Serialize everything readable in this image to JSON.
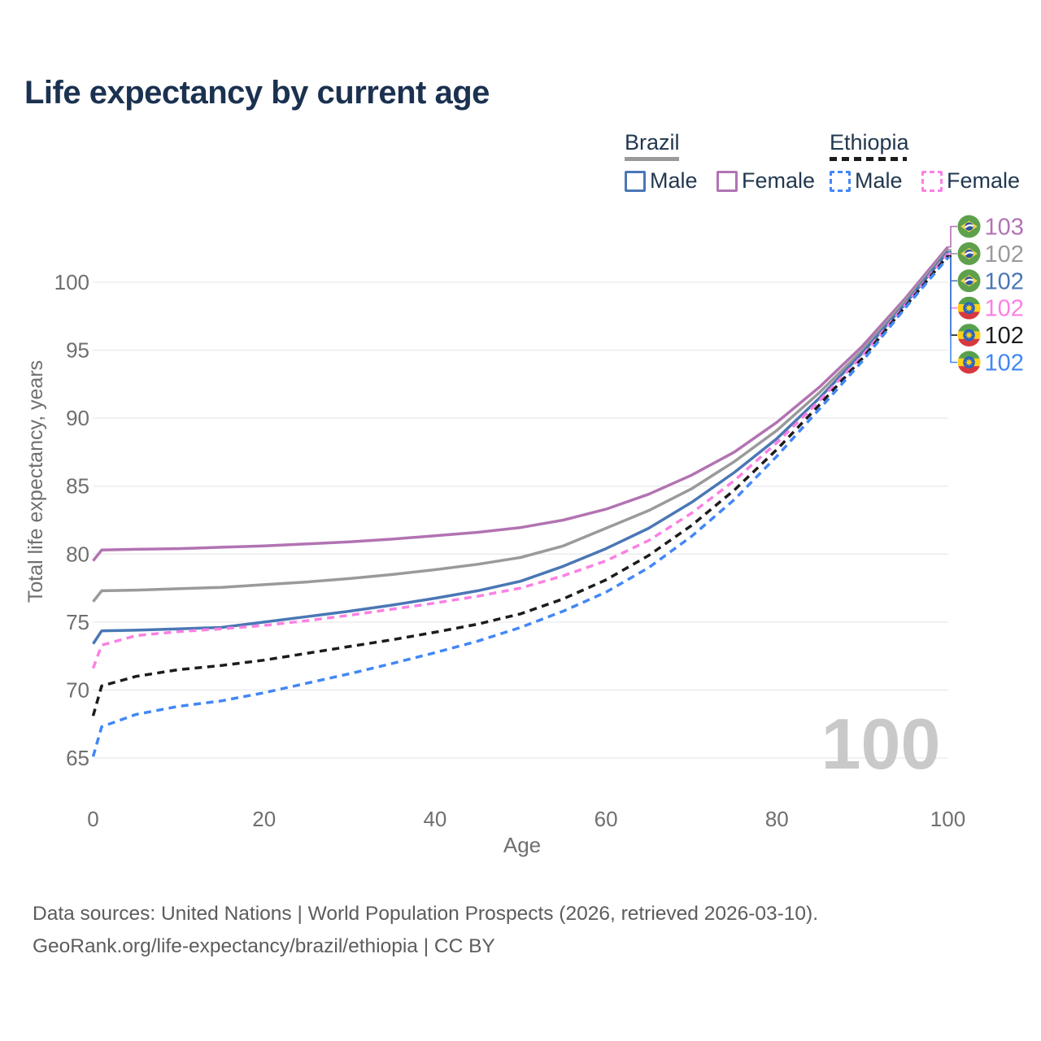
{
  "title": "Life expectancy by current age",
  "legend": {
    "groups": [
      {
        "country": "Brazil",
        "underline_style": "solid",
        "underline_color": "#9a9a9a",
        "items": [
          {
            "label": "Male",
            "color": "#4a77b5",
            "dash": false
          },
          {
            "label": "Female",
            "color": "#b273b2",
            "dash": false
          }
        ]
      },
      {
        "country": "Ethiopia",
        "underline_style": "dashed",
        "underline_color": "#1c1c1c",
        "items": [
          {
            "label": "Male",
            "color": "#4287f5",
            "dash": true
          },
          {
            "label": "Female",
            "color": "#fb80e3",
            "dash": true
          }
        ]
      }
    ]
  },
  "chart_data": {
    "type": "line",
    "title": "Life expectancy by current age",
    "xlabel": "Age",
    "ylabel": "Total life expectancy, years",
    "xlim": [
      0,
      100
    ],
    "ylim": [
      63.5,
      103.5
    ],
    "xticks": [
      0,
      20,
      40,
      60,
      80,
      100
    ],
    "yticks": [
      65,
      70,
      75,
      80,
      85,
      90,
      95,
      100
    ],
    "grid": "horizontal",
    "legend_position": "top-right",
    "watermark": "100",
    "x_ages": [
      0,
      1,
      5,
      10,
      15,
      20,
      25,
      30,
      35,
      40,
      45,
      50,
      55,
      60,
      65,
      70,
      75,
      80,
      85,
      90,
      95,
      100
    ],
    "series": [
      {
        "name": "Brazil Female",
        "color": "#b273b2",
        "dash": false,
        "values": [
          79.5,
          80.3,
          80.35,
          80.4,
          80.5,
          80.6,
          80.75,
          80.9,
          81.1,
          81.35,
          81.6,
          81.95,
          82.5,
          83.3,
          84.4,
          85.8,
          87.5,
          89.7,
          92.3,
          95.3,
          98.8,
          102.6
        ]
      },
      {
        "name": "Brazil",
        "color": "#9a9a9a",
        "dash": false,
        "values": [
          76.5,
          77.3,
          77.35,
          77.45,
          77.55,
          77.75,
          77.95,
          78.2,
          78.5,
          78.85,
          79.25,
          79.75,
          80.6,
          81.9,
          83.2,
          84.8,
          86.8,
          89.1,
          91.9,
          95.0,
          98.6,
          102.4
        ]
      },
      {
        "name": "Brazil Male",
        "color": "#4a77b5",
        "dash": false,
        "values": [
          73.4,
          74.35,
          74.4,
          74.5,
          74.6,
          75.0,
          75.4,
          75.8,
          76.25,
          76.75,
          77.3,
          78.0,
          79.1,
          80.4,
          81.9,
          83.8,
          86.0,
          88.5,
          91.5,
          94.8,
          98.4,
          102.25
        ]
      },
      {
        "name": "Ethiopia Female",
        "color": "#fb80e3",
        "dash": true,
        "values": [
          71.6,
          73.3,
          74.0,
          74.3,
          74.5,
          74.75,
          75.1,
          75.5,
          75.95,
          76.4,
          76.9,
          77.5,
          78.4,
          79.5,
          81.0,
          83.0,
          85.4,
          88.2,
          91.3,
          94.6,
          98.3,
          102.1
        ]
      },
      {
        "name": "Ethiopia",
        "color": "#1c1c1c",
        "dash": true,
        "values": [
          68.1,
          70.3,
          71.0,
          71.5,
          71.8,
          72.2,
          72.7,
          73.2,
          73.7,
          74.25,
          74.85,
          75.6,
          76.7,
          78.1,
          79.9,
          82.1,
          84.7,
          87.7,
          91.0,
          94.4,
          98.2,
          101.95
        ]
      },
      {
        "name": "Ethiopia Male",
        "color": "#4287f5",
        "dash": true,
        "values": [
          65.1,
          67.3,
          68.2,
          68.8,
          69.2,
          69.8,
          70.5,
          71.2,
          71.95,
          72.75,
          73.6,
          74.6,
          75.8,
          77.2,
          79.0,
          81.3,
          84.0,
          87.2,
          90.7,
          94.2,
          98.1,
          101.8
        ]
      }
    ],
    "end_labels": [
      {
        "value": "103",
        "flag": "brazil",
        "color": "#b273b2"
      },
      {
        "value": "102",
        "flag": "brazil",
        "color": "#9a9a9a"
      },
      {
        "value": "102",
        "flag": "brazil",
        "color": "#4a77b5"
      },
      {
        "value": "102",
        "flag": "ethiopia",
        "color": "#fb80e3"
      },
      {
        "value": "102",
        "flag": "ethiopia",
        "color": "#1c1c1c"
      },
      {
        "value": "102",
        "flag": "ethiopia",
        "color": "#4287f5"
      }
    ],
    "flag_colors": {
      "brazil": {
        "green": "#5ea04b",
        "yellow": "#f7d34c",
        "blue": "#2b55a4",
        "band": "#ffffff"
      },
      "ethiopia": {
        "green": "#57a14b",
        "yellow": "#fcd116",
        "red": "#d7383f",
        "blue": "#2a63c4"
      }
    },
    "axis_color": "#6f6f6f",
    "grid_color": "#eaeaea",
    "watermark_color": "#c9c9c9"
  },
  "footer": {
    "line1": "Data sources: United Nations | World Population Prospects (2026, retrieved 2026-03-10).",
    "line2": "GeoRank.org/life-expectancy/brazil/ethiopia | CC BY"
  }
}
